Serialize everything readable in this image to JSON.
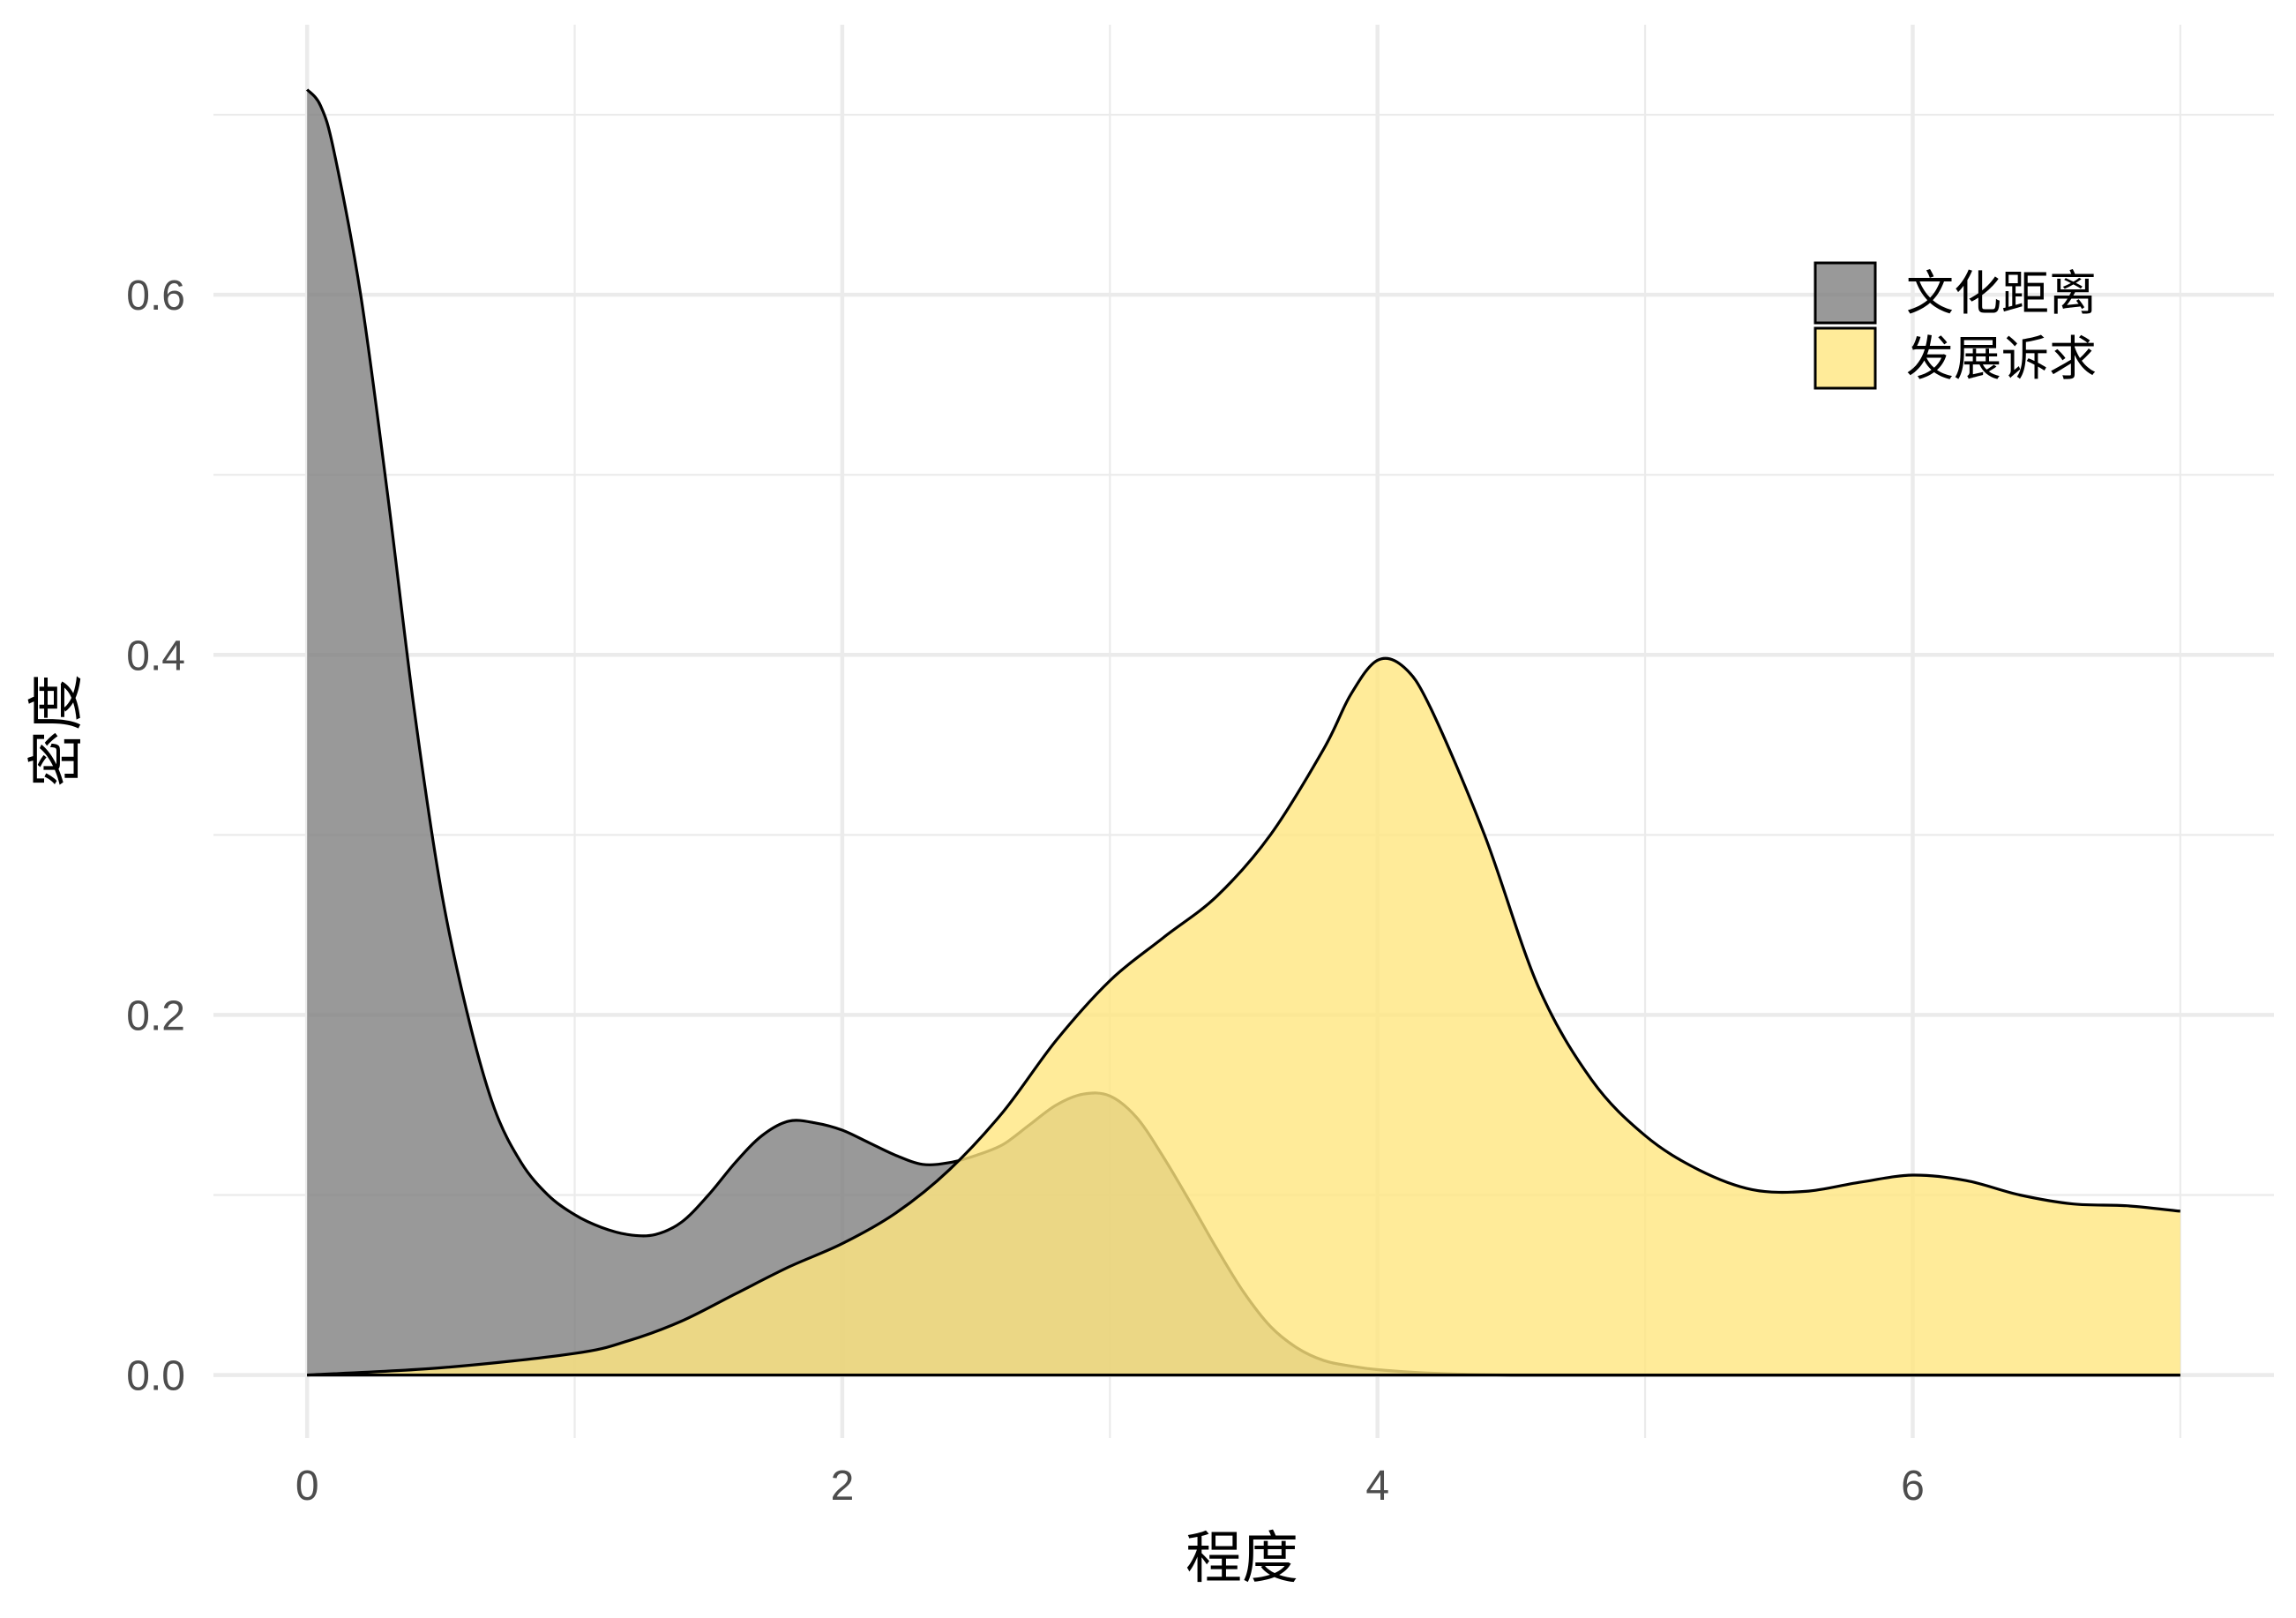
{
  "chart_data": {
    "type": "area",
    "subtype": "density",
    "title": "",
    "xlabel": "程度",
    "ylabel": "密度",
    "xlim": [
      -0.35,
      7.35
    ],
    "ylim": [
      -0.035,
      0.75
    ],
    "x_ticks": [
      0,
      2,
      4,
      6
    ],
    "x_minor_ticks": [
      1,
      3,
      5,
      7
    ],
    "y_ticks": [
      0.0,
      0.2,
      0.4,
      0.6
    ],
    "y_tick_labels": [
      "0.0",
      "0.2",
      "0.4",
      "0.6"
    ],
    "y_minor_ticks": [
      0.1,
      0.3,
      0.5,
      0.7
    ],
    "grid": true,
    "legend_position": "top-right",
    "series": [
      {
        "name": "文化距离",
        "color": "#808080",
        "opacity": 0.8,
        "x": [
          0,
          0.05,
          0.1,
          0.2,
          0.3,
          0.4,
          0.5,
          0.6,
          0.7,
          0.8,
          0.9,
          1.0,
          1.1,
          1.2,
          1.3,
          1.4,
          1.5,
          1.6,
          1.7,
          1.8,
          1.9,
          2.0,
          2.1,
          2.2,
          2.3,
          2.4,
          2.5,
          2.6,
          2.7,
          2.8,
          2.9,
          3.0,
          3.1,
          3.2,
          3.3,
          3.4,
          3.5,
          3.6,
          3.7,
          3.8,
          3.9,
          4.0,
          4.2,
          4.5,
          5.0,
          5.5,
          6.0,
          6.5,
          7.0
        ],
        "y": [
          0.714,
          0.705,
          0.68,
          0.6,
          0.49,
          0.37,
          0.27,
          0.2,
          0.148,
          0.118,
          0.1,
          0.089,
          0.082,
          0.078,
          0.078,
          0.085,
          0.1,
          0.118,
          0.133,
          0.141,
          0.14,
          0.136,
          0.129,
          0.122,
          0.117,
          0.118,
          0.122,
          0.128,
          0.139,
          0.15,
          0.156,
          0.155,
          0.143,
          0.121,
          0.096,
          0.07,
          0.046,
          0.027,
          0.015,
          0.008,
          0.005,
          0.003,
          0.001,
          0.0,
          0.0,
          0.0,
          0.0,
          0.0,
          0.0
        ]
      },
      {
        "name": "发展诉求",
        "color": "#ffe680",
        "opacity": 0.8,
        "x": [
          0,
          0.5,
          1.0,
          1.2,
          1.4,
          1.6,
          1.8,
          2.0,
          2.2,
          2.4,
          2.6,
          2.8,
          3.0,
          3.2,
          3.4,
          3.6,
          3.8,
          3.9,
          4.0,
          4.1,
          4.2,
          4.4,
          4.6,
          4.8,
          5.0,
          5.2,
          5.4,
          5.6,
          5.8,
          6.0,
          6.2,
          6.4,
          6.6,
          6.8,
          7.0
        ],
        "y": [
          0.0,
          0.004,
          0.012,
          0.019,
          0.03,
          0.045,
          0.06,
          0.073,
          0.09,
          0.114,
          0.146,
          0.186,
          0.219,
          0.243,
          0.266,
          0.3,
          0.348,
          0.378,
          0.397,
          0.393,
          0.37,
          0.3,
          0.216,
          0.164,
          0.133,
          0.114,
          0.103,
          0.102,
          0.107,
          0.111,
          0.108,
          0.1,
          0.095,
          0.094,
          0.091
        ]
      }
    ]
  }
}
